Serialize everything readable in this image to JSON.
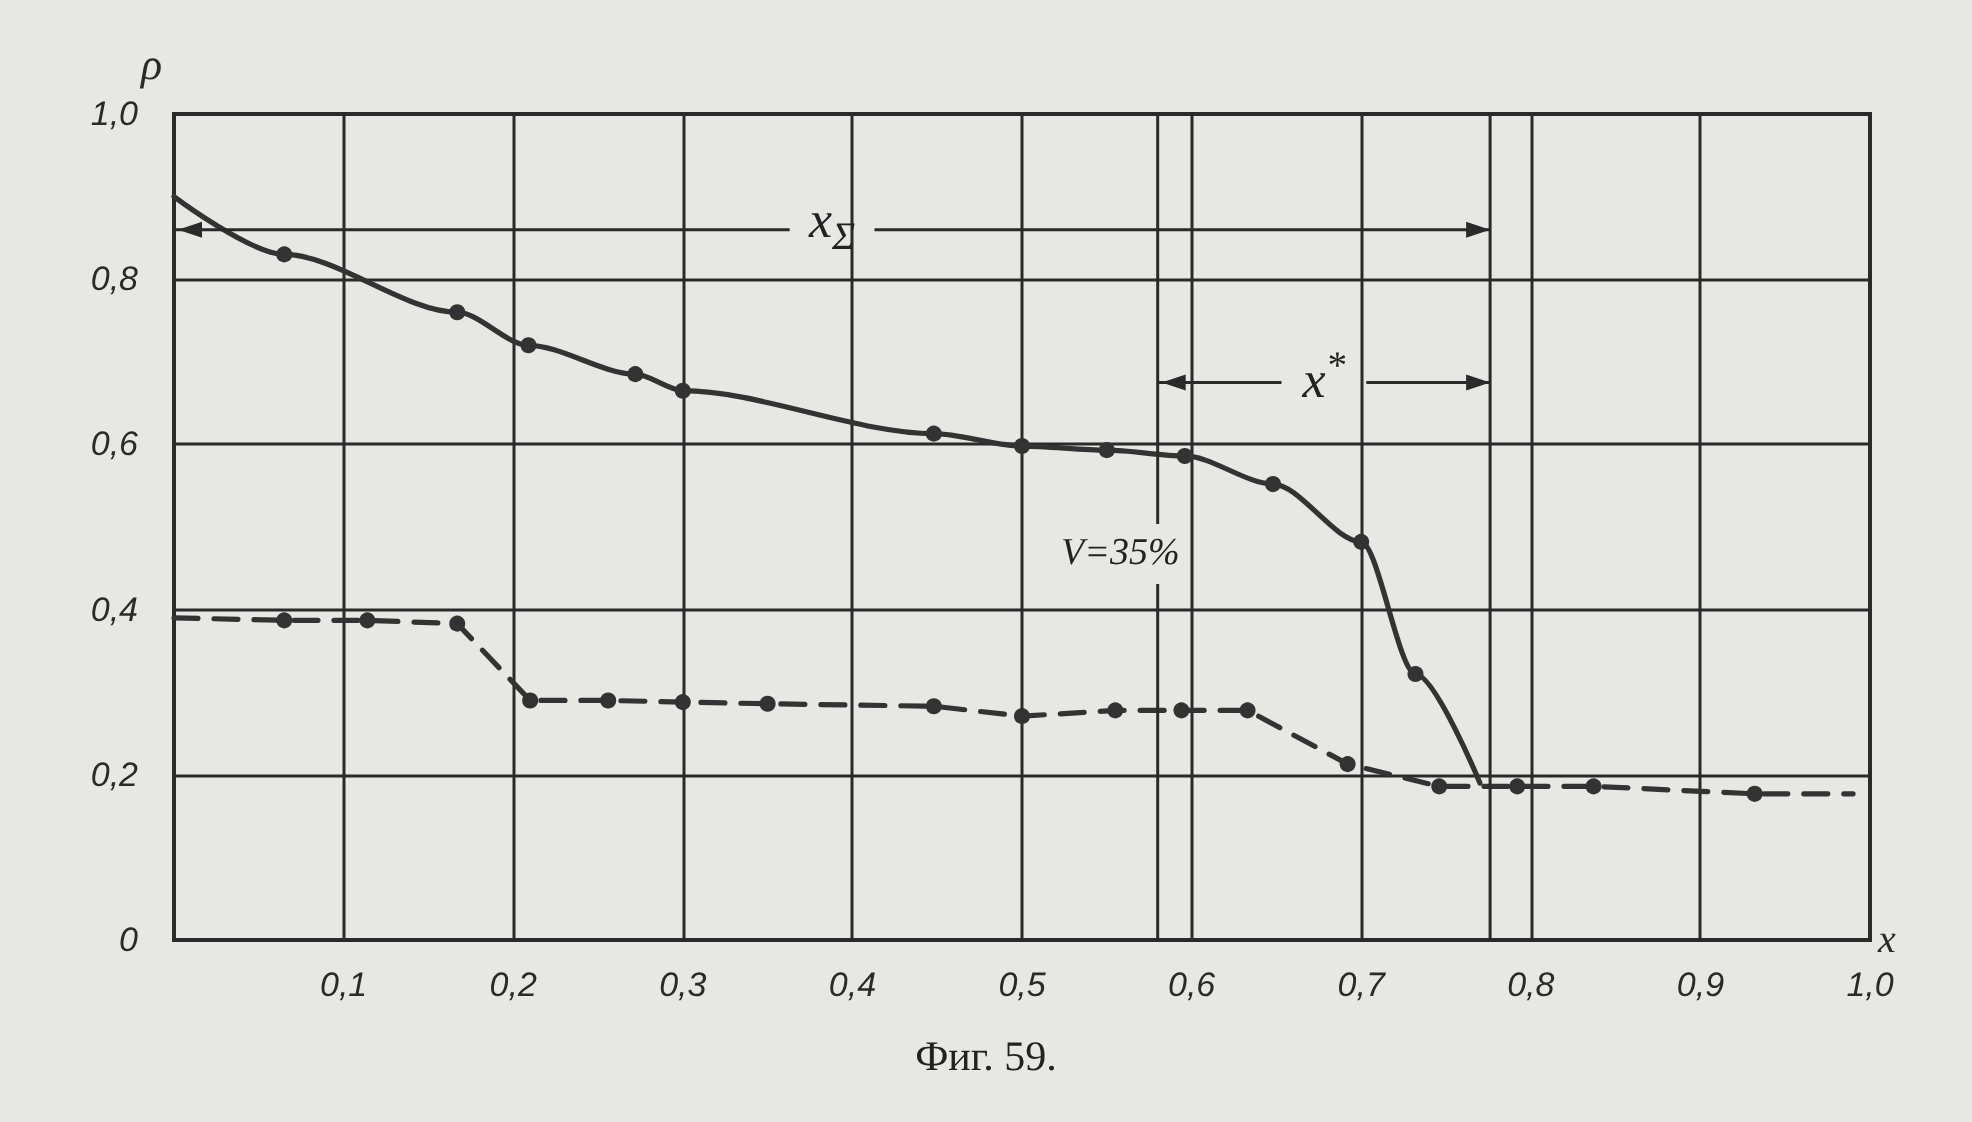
{
  "chart_data": {
    "type": "line",
    "xlabel": "x",
    "ylabel": "ρ",
    "x": [
      0,
      0.065,
      0.167,
      0.209,
      0.272,
      0.3,
      0.448,
      0.5,
      0.55,
      0.596,
      0.648,
      0.7,
      0.732,
      0.77
    ],
    "series": [
      {
        "color": "#333333",
        "line_style": "solid",
        "values": [
          0.9,
          0.83,
          0.76,
          0.72,
          0.685,
          0.665,
          0.613,
          0.598,
          0.593,
          0.586,
          0.552,
          0.482,
          0.322,
          0.19
        ]
      },
      {
        "color": "#333333",
        "line_style": "dashed",
        "x": [
          0,
          0.065,
          0.114,
          0.167,
          0.21,
          0.256,
          0.3,
          0.35,
          0.448,
          0.5,
          0.555,
          0.594,
          0.633,
          0.692,
          0.746,
          0.792,
          0.837,
          0.932,
          0.99
        ],
        "values": [
          0.39,
          0.387,
          0.387,
          0.383,
          0.29,
          0.29,
          0.288,
          0.286,
          0.283,
          0.271,
          0.278,
          0.278,
          0.278,
          0.213,
          0.186,
          0.186,
          0.186,
          0.177,
          0.177
        ]
      }
    ],
    "xlim": [
      0,
      1.0
    ],
    "xticks": [
      {
        "value": 0,
        "label": null
      },
      {
        "value": 0.1,
        "label": "0,1"
      },
      {
        "value": 0.2,
        "label": "0,2"
      },
      {
        "value": 0.3,
        "label": "0,3"
      },
      {
        "value": 0.4,
        "label": "0,4"
      },
      {
        "value": 0.5,
        "label": "0,5"
      },
      {
        "value": 0.6,
        "label": "0,6"
      },
      {
        "value": 0.7,
        "label": "0,7"
      },
      {
        "value": 0.8,
        "label": "0,8"
      },
      {
        "value": 0.9,
        "label": "0,9"
      },
      {
        "value": 1.0,
        "label": "1,0"
      }
    ],
    "ylim": [
      0,
      1.0
    ],
    "yticks": [
      0,
      {
        "value": 0.2,
        "label": "0,2"
      },
      {
        "value": 0.4,
        "label": "0,4"
      },
      {
        "value": 0.6,
        "label": "0,6"
      },
      {
        "value": 0.8,
        "label": "0,8"
      },
      {
        "value": 1.0,
        "label": "1,0"
      }
    ],
    "annotations": [
      {
        "text": "x$_{Σ}$",
        "x": 0.776,
        "y": 0.86
      },
      {
        "text": "x$^{*}$",
        "x": 0.776,
        "y": 0.675
      },
      "V=35%",
      "Фиг. 59."
    ],
    "ref_lines": [
      {
        "axis": "x",
        "value": 0.776,
        "color": "#2a2a2a",
        "line_style": "solid"
      },
      {
        "axis": "x",
        "value": 0.58,
        "color": "#2a2a2a",
        "line_style": "solid"
      }
    ],
    "grid": true,
    "marker": "circle"
  }
}
